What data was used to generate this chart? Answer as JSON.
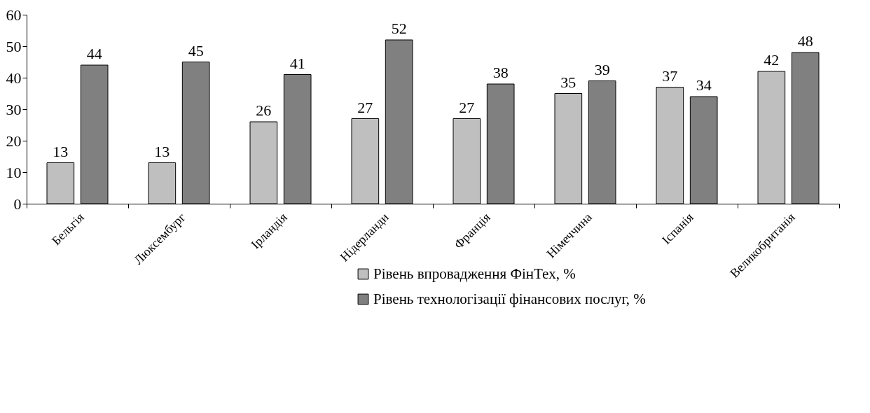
{
  "chart_data": {
    "type": "bar",
    "categories": [
      "Бельгія",
      "Люксембург",
      "Ірландія",
      "Нідерланди",
      "Франція",
      "Німеччина",
      "Іспанія",
      "Великобританія"
    ],
    "series": [
      {
        "name": "Рівень впровадження ФінТех, %",
        "color": "#bfbfbf",
        "values": [
          13,
          13,
          26,
          27,
          27,
          35,
          37,
          42
        ]
      },
      {
        "name": "Рівень технологізації фінансових послуг, %",
        "color": "#808080",
        "values": [
          44,
          45,
          41,
          52,
          38,
          39,
          34,
          48
        ]
      }
    ],
    "ylim": [
      0,
      60
    ],
    "yticks": [
      0,
      10,
      20,
      30,
      40,
      50,
      60
    ],
    "data_labels": true,
    "legend": "bottom"
  }
}
